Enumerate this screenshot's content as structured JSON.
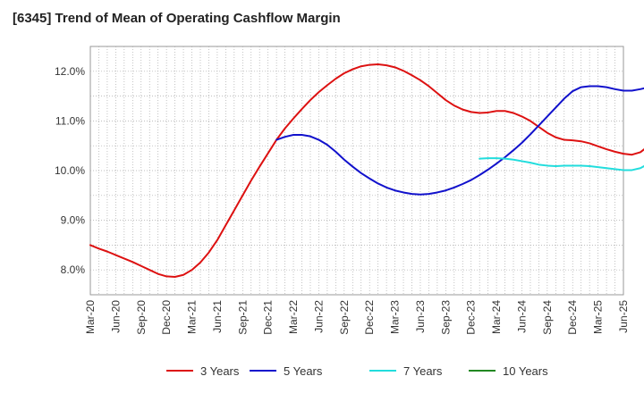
{
  "chart_data": {
    "type": "line",
    "title": "[6345]  Trend of Mean of Operating Cashflow Margin",
    "xlabel": "",
    "ylabel": "",
    "x_ticks": [
      "Mar-20",
      "Jun-20",
      "Sep-20",
      "Dec-20",
      "Mar-21",
      "Jun-21",
      "Sep-21",
      "Dec-21",
      "Mar-22",
      "Jun-22",
      "Sep-22",
      "Dec-22",
      "Mar-23",
      "Jun-23",
      "Sep-23",
      "Dec-23",
      "Mar-24",
      "Jun-24",
      "Sep-24",
      "Dec-24",
      "Mar-25",
      "Jun-25"
    ],
    "y_ticks": [
      "8.0%",
      "9.0%",
      "10.0%",
      "11.0%",
      "12.0%"
    ],
    "ylim": [
      7.5,
      12.5
    ],
    "y_unit": "%",
    "grid": true,
    "legend_position": "bottom",
    "series": [
      {
        "name": "3 Years",
        "color": "#dd1111",
        "points": [
          [
            "Mar-20",
            8.5
          ],
          [
            "Apr-20",
            8.43
          ],
          [
            "May-20",
            8.37
          ],
          [
            "Jun-20",
            8.3
          ],
          [
            "Jul-20",
            8.23
          ],
          [
            "Aug-20",
            8.16
          ],
          [
            "Sep-20",
            8.08
          ],
          [
            "Oct-20",
            8.0
          ],
          [
            "Nov-20",
            7.92
          ],
          [
            "Dec-20",
            7.87
          ],
          [
            "Jan-21",
            7.86
          ],
          [
            "Feb-21",
            7.9
          ],
          [
            "Mar-21",
            8.0
          ],
          [
            "Apr-21",
            8.15
          ],
          [
            "May-21",
            8.35
          ],
          [
            "Jun-21",
            8.6
          ],
          [
            "Jul-21",
            8.9
          ],
          [
            "Aug-21",
            9.2
          ],
          [
            "Sep-21",
            9.5
          ],
          [
            "Oct-21",
            9.8
          ],
          [
            "Nov-21",
            10.08
          ],
          [
            "Dec-21",
            10.35
          ],
          [
            "Jan-22",
            10.62
          ],
          [
            "Feb-22",
            10.85
          ],
          [
            "Mar-22",
            11.05
          ],
          [
            "Apr-22",
            11.24
          ],
          [
            "May-22",
            11.42
          ],
          [
            "Jun-22",
            11.58
          ],
          [
            "Jul-22",
            11.72
          ],
          [
            "Aug-22",
            11.85
          ],
          [
            "Sep-22",
            11.96
          ],
          [
            "Oct-22",
            12.04
          ],
          [
            "Nov-22",
            12.1
          ],
          [
            "Dec-22",
            12.13
          ],
          [
            "Jan-23",
            12.14
          ],
          [
            "Feb-23",
            12.12
          ],
          [
            "Mar-23",
            12.08
          ],
          [
            "Apr-23",
            12.01
          ],
          [
            "May-23",
            11.92
          ],
          [
            "Jun-23",
            11.82
          ],
          [
            "Jul-23",
            11.7
          ],
          [
            "Aug-23",
            11.56
          ],
          [
            "Sep-23",
            11.42
          ],
          [
            "Oct-23",
            11.31
          ],
          [
            "Nov-23",
            11.23
          ],
          [
            "Dec-23",
            11.18
          ],
          [
            "Jan-24",
            11.16
          ],
          [
            "Feb-24",
            11.17
          ],
          [
            "Mar-24",
            11.2
          ],
          [
            "Apr-24",
            11.2
          ],
          [
            "May-24",
            11.16
          ],
          [
            "Jun-24",
            11.09
          ],
          [
            "Jul-24",
            11.0
          ],
          [
            "Aug-24",
            10.88
          ],
          [
            "Sep-24",
            10.76
          ],
          [
            "Oct-24",
            10.67
          ],
          [
            "Nov-24",
            10.62
          ],
          [
            "Dec-24",
            10.61
          ],
          [
            "Jan-25",
            10.59
          ],
          [
            "Feb-25",
            10.55
          ],
          [
            "Mar-25",
            10.49
          ],
          [
            "Apr-25",
            10.43
          ],
          [
            "May-25",
            10.38
          ],
          [
            "Jun-25",
            10.34
          ],
          [
            "Jul-25",
            10.32
          ],
          [
            "Aug-25",
            10.37
          ],
          [
            "Sep-25",
            10.5
          ],
          [
            "Oct-25",
            10.82
          ]
        ]
      },
      {
        "name": "5 Years",
        "color": "#1111cc",
        "points": [
          [
            "Jan-22",
            10.62
          ],
          [
            "Feb-22",
            10.68
          ],
          [
            "Mar-22",
            10.72
          ],
          [
            "Apr-22",
            10.72
          ],
          [
            "May-22",
            10.69
          ],
          [
            "Jun-22",
            10.62
          ],
          [
            "Jul-22",
            10.52
          ],
          [
            "Aug-22",
            10.38
          ],
          [
            "Sep-22",
            10.22
          ],
          [
            "Oct-22",
            10.08
          ],
          [
            "Nov-22",
            9.95
          ],
          [
            "Dec-22",
            9.84
          ],
          [
            "Jan-23",
            9.74
          ],
          [
            "Feb-23",
            9.66
          ],
          [
            "Mar-23",
            9.6
          ],
          [
            "Apr-23",
            9.56
          ],
          [
            "May-23",
            9.53
          ],
          [
            "Jun-23",
            9.52
          ],
          [
            "Jul-23",
            9.53
          ],
          [
            "Aug-23",
            9.56
          ],
          [
            "Sep-23",
            9.6
          ],
          [
            "Oct-23",
            9.66
          ],
          [
            "Nov-23",
            9.73
          ],
          [
            "Dec-23",
            9.81
          ],
          [
            "Jan-24",
            9.91
          ],
          [
            "Feb-24",
            10.02
          ],
          [
            "Mar-24",
            10.14
          ],
          [
            "Apr-24",
            10.27
          ],
          [
            "May-24",
            10.41
          ],
          [
            "Jun-24",
            10.56
          ],
          [
            "Jul-24",
            10.73
          ],
          [
            "Aug-24",
            10.91
          ],
          [
            "Sep-24",
            11.09
          ],
          [
            "Oct-24",
            11.27
          ],
          [
            "Nov-24",
            11.45
          ],
          [
            "Dec-24",
            11.6
          ],
          [
            "Jan-25",
            11.68
          ],
          [
            "Feb-25",
            11.7
          ],
          [
            "Mar-25",
            11.7
          ],
          [
            "Apr-25",
            11.68
          ],
          [
            "May-25",
            11.64
          ],
          [
            "Jun-25",
            11.61
          ],
          [
            "Jul-25",
            11.61
          ],
          [
            "Aug-25",
            11.64
          ],
          [
            "Sep-25",
            11.68
          ],
          [
            "Oct-25",
            11.7
          ]
        ]
      },
      {
        "name": "7 Years",
        "color": "#22dddd",
        "points": [
          [
            "Jan-24",
            10.24
          ],
          [
            "Feb-24",
            10.25
          ],
          [
            "Mar-24",
            10.25
          ],
          [
            "Apr-24",
            10.24
          ],
          [
            "May-24",
            10.22
          ],
          [
            "Jun-24",
            10.19
          ],
          [
            "Jul-24",
            10.16
          ],
          [
            "Aug-24",
            10.12
          ],
          [
            "Sep-24",
            10.1
          ],
          [
            "Oct-24",
            10.09
          ],
          [
            "Nov-24",
            10.1
          ],
          [
            "Dec-24",
            10.1
          ],
          [
            "Jan-25",
            10.1
          ],
          [
            "Feb-25",
            10.09
          ],
          [
            "Mar-25",
            10.07
          ],
          [
            "Apr-25",
            10.05
          ],
          [
            "May-25",
            10.03
          ],
          [
            "Jun-25",
            10.01
          ],
          [
            "Jul-25",
            10.01
          ],
          [
            "Aug-25",
            10.05
          ],
          [
            "Sep-25",
            10.14
          ],
          [
            "Oct-25",
            10.29
          ]
        ]
      },
      {
        "name": "10 Years",
        "color": "#228822",
        "points": []
      }
    ]
  }
}
